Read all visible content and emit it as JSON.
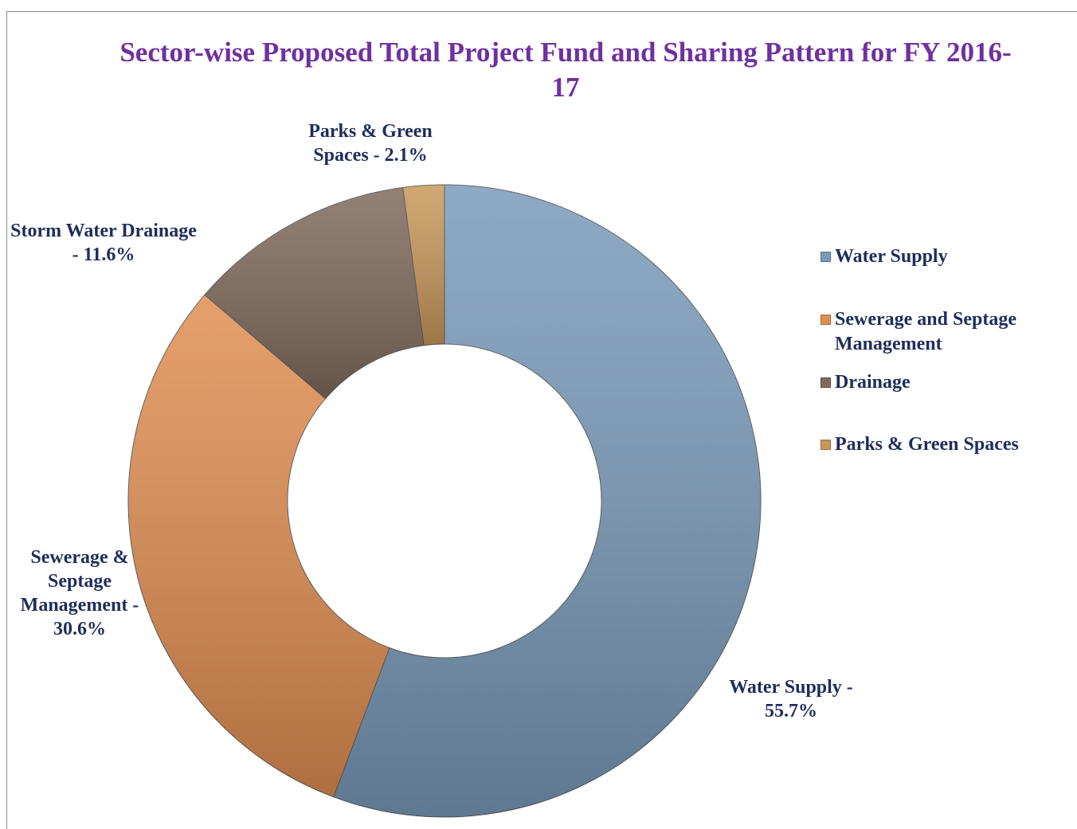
{
  "chart_data": {
    "type": "donut",
    "title": "Sector-wise Proposed Total Project Fund and Sharing Pattern for FY 2016-17",
    "categories": [
      "Water Supply",
      "Sewerage and Septage Management",
      "Drainage",
      "Parks & Green Spaces"
    ],
    "values": [
      55.7,
      30.6,
      11.6,
      2.1
    ],
    "value_labels": [
      "Water Supply - 55.7%",
      "Sewerage & Septage Management - 30.6%",
      "Storm Water Drainage - 11.6%",
      "Parks & Green Spaces - 2.1%"
    ],
    "colors": [
      "#7a9aba",
      "#e08e52",
      "#806a5c",
      "#c9975a"
    ],
    "legend": "right"
  }
}
